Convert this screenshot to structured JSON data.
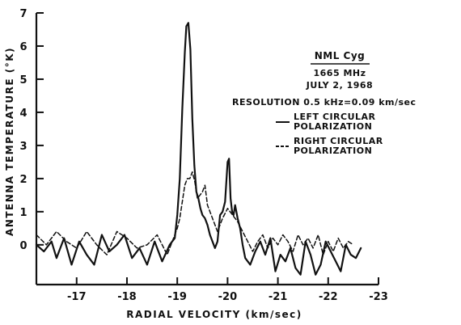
{
  "chart_data": {
    "type": "line",
    "xlabel": "RADIAL VELOCITY (km/sec)",
    "ylabel": "ANTENNA TEMPERATURE (°K)",
    "xlim": [
      -16.2,
      -23
    ],
    "ylim": [
      -1.2,
      7
    ],
    "x_ticks": [
      -17,
      -18,
      -19,
      -20,
      -21,
      -22,
      -23
    ],
    "y_ticks": [
      0,
      1,
      2,
      3,
      4,
      5,
      6,
      7
    ],
    "grid": false,
    "legend_placement": "right",
    "annotation": {
      "title": "NML Cyg",
      "lines": [
        "1665 MHz",
        "JULY 2, 1968",
        "RESOLUTION 0.5 kHz=0.09 km/sec"
      ]
    },
    "series": [
      {
        "name": "LEFT CIRCULAR POLARIZATION",
        "line_style": "solid",
        "x": [
          -16.2,
          -16.35,
          -16.5,
          -16.6,
          -16.75,
          -16.9,
          -17.05,
          -17.2,
          -17.35,
          -17.5,
          -17.65,
          -17.8,
          -17.95,
          -18.1,
          -18.25,
          -18.4,
          -18.55,
          -18.7,
          -18.85,
          -18.95,
          -19.0,
          -19.05,
          -19.1,
          -19.15,
          -19.18,
          -19.22,
          -19.26,
          -19.3,
          -19.34,
          -19.38,
          -19.42,
          -19.46,
          -19.5,
          -19.55,
          -19.6,
          -19.65,
          -19.7,
          -19.75,
          -19.8,
          -19.85,
          -19.9,
          -19.95,
          -20.0,
          -20.03,
          -20.06,
          -20.09,
          -20.12,
          -20.15,
          -20.2,
          -20.25,
          -20.3,
          -20.35,
          -20.45,
          -20.55,
          -20.65,
          -20.75,
          -20.85,
          -20.95,
          -21.05,
          -21.15,
          -21.25,
          -21.35,
          -21.45,
          -21.55,
          -21.65,
          -21.75,
          -21.85,
          -21.95,
          -22.05,
          -22.15,
          -22.25,
          -22.35,
          -22.45,
          -22.55,
          -22.65
        ],
        "y": [
          0.0,
          -0.2,
          0.1,
          -0.4,
          0.2,
          -0.6,
          0.1,
          -0.3,
          -0.6,
          0.3,
          -0.2,
          0.0,
          0.3,
          -0.4,
          -0.1,
          -0.6,
          0.1,
          -0.5,
          0.0,
          0.2,
          0.9,
          2.0,
          4.1,
          5.8,
          6.6,
          6.7,
          5.9,
          3.8,
          2.4,
          1.6,
          1.4,
          1.1,
          0.9,
          0.8,
          0.6,
          0.3,
          0.1,
          -0.1,
          0.1,
          0.9,
          1.0,
          1.3,
          2.5,
          2.6,
          1.4,
          1.0,
          0.9,
          1.2,
          0.8,
          0.5,
          0.0,
          -0.4,
          -0.6,
          -0.2,
          0.1,
          -0.3,
          0.2,
          -0.8,
          -0.3,
          -0.5,
          -0.1,
          -0.7,
          -0.9,
          0.1,
          -0.3,
          -0.9,
          -0.6,
          0.1,
          -0.2,
          -0.5,
          -0.8,
          0.0,
          -0.3,
          -0.4,
          -0.1
        ]
      },
      {
        "name": "RIGHT CIRCULAR POLARIZATION",
        "line_style": "dashed",
        "x": [
          -16.2,
          -16.4,
          -16.6,
          -16.8,
          -17.0,
          -17.2,
          -17.4,
          -17.6,
          -17.8,
          -18.0,
          -18.2,
          -18.4,
          -18.6,
          -18.8,
          -18.9,
          -19.0,
          -19.05,
          -19.1,
          -19.15,
          -19.2,
          -19.25,
          -19.3,
          -19.35,
          -19.4,
          -19.45,
          -19.5,
          -19.55,
          -19.6,
          -19.7,
          -19.8,
          -19.9,
          -20.0,
          -20.1,
          -20.2,
          -20.3,
          -20.4,
          -20.5,
          -20.6,
          -20.7,
          -20.8,
          -20.9,
          -21.0,
          -21.1,
          -21.2,
          -21.3,
          -21.4,
          -21.5,
          -21.6,
          -21.7,
          -21.8,
          -21.9,
          -22.0,
          -22.1,
          -22.2,
          -22.3,
          -22.4,
          -22.5
        ],
        "y": [
          0.3,
          0.0,
          0.4,
          0.1,
          -0.1,
          0.4,
          0.0,
          -0.3,
          0.4,
          0.2,
          -0.1,
          0.0,
          0.3,
          -0.3,
          0.1,
          0.5,
          0.8,
          1.3,
          1.8,
          2.0,
          2.0,
          2.2,
          1.9,
          1.4,
          1.5,
          1.6,
          1.8,
          1.2,
          0.8,
          0.4,
          0.8,
          1.1,
          0.9,
          0.7,
          0.4,
          0.1,
          -0.2,
          0.1,
          0.3,
          -0.1,
          0.2,
          0.0,
          0.3,
          0.1,
          -0.2,
          0.3,
          0.0,
          0.2,
          -0.1,
          0.3,
          -0.3,
          0.1,
          -0.2,
          0.2,
          -0.1,
          0.1,
          0.0
        ]
      }
    ]
  }
}
